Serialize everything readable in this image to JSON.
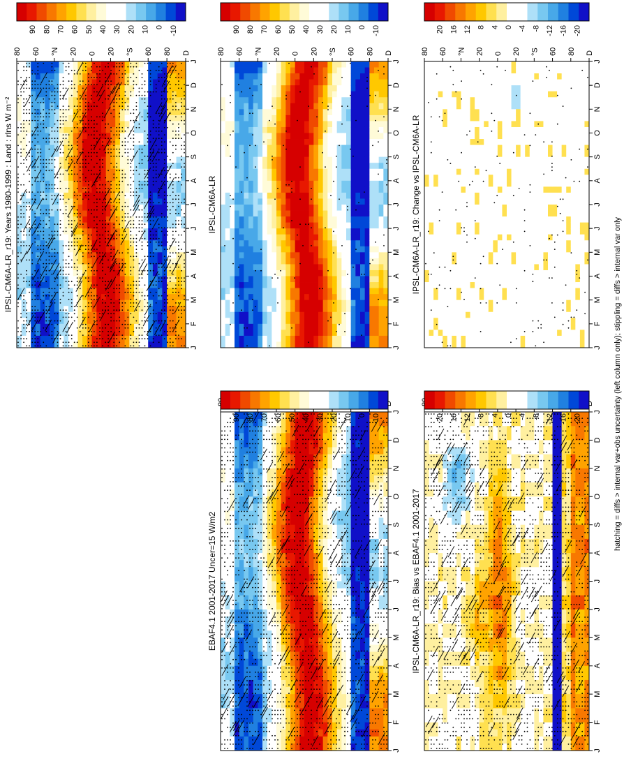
{
  "figure": {
    "caption": "hatching = diffs > internal var+obs uncertainty (left column only); stippling = diffs > internal var only"
  },
  "scales": {
    "abs": {
      "colors": [
        "#d60000",
        "#e81800",
        "#f04a00",
        "#f87800",
        "#ffa300",
        "#ffc800",
        "#ffe050",
        "#fff0a0",
        "#fffbd8",
        "#ffffff",
        "#ffffff",
        "#aee0f8",
        "#78c8f0",
        "#48a8e8",
        "#2080e0",
        "#0048d8",
        "#1010c8"
      ],
      "tick_labels": [
        "90",
        "80",
        "70",
        "60",
        "50",
        "40",
        "30",
        "20",
        "10",
        "0",
        "-10"
      ]
    },
    "diff": {
      "colors": [
        "#d60000",
        "#e81800",
        "#f04a00",
        "#f87800",
        "#ffa300",
        "#ffc800",
        "#ffe050",
        "#fff0a0",
        "#ffffff",
        "#ffffff",
        "#aee0f8",
        "#78c8f0",
        "#48a8e8",
        "#2080e0",
        "#0048d8",
        "#1010c8"
      ],
      "tick_labels": [
        "20",
        "16",
        "12",
        "8",
        "4",
        "0",
        "-4",
        "-8",
        "-12",
        "-16",
        "-20"
      ]
    }
  },
  "chart_data": [
    {
      "id": "p1",
      "type": "heatmap",
      "scale": "abs",
      "title": "IPSL-CM6A-LR_r19: Years 1980-1999 : Land : rlns W m⁻²",
      "colorbar_ticks": [
        "90",
        "80",
        "70",
        "60",
        "50",
        "40",
        "30",
        "20",
        "10",
        "0",
        "-10"
      ],
      "months": [
        "J",
        "F",
        "M",
        "A",
        "M",
        "J",
        "J",
        "A",
        "S",
        "O",
        "N",
        "D",
        "J"
      ],
      "lat_ticks": [
        "80",
        "60",
        "°N",
        "20",
        "0",
        "20",
        "°S",
        "60",
        "80",
        "D"
      ],
      "hatched": true,
      "stippled": true
    },
    {
      "id": "p2",
      "type": "heatmap",
      "scale": "abs",
      "title": "IPSL-CM6A-LR",
      "colorbar_ticks": [
        "90",
        "80",
        "70",
        "60",
        "50",
        "40",
        "30",
        "20",
        "10",
        "0",
        "-10"
      ],
      "months": [
        "J",
        "F",
        "M",
        "A",
        "M",
        "J",
        "J",
        "A",
        "S",
        "O",
        "N",
        "D",
        "J"
      ],
      "lat_ticks": [
        "80",
        "60",
        "°N",
        "20",
        "0",
        "20",
        "°S",
        "60",
        "80",
        "D"
      ],
      "hatched": false,
      "stippled": true
    },
    {
      "id": "p3",
      "type": "heatmap",
      "scale": "abs",
      "title": "EBAF4.1 2001-2017 Uncer=15 W/m2",
      "colorbar_ticks": [
        "90",
        "80",
        "70",
        "60",
        "50",
        "40",
        "30",
        "20",
        "10",
        "0",
        "-10"
      ],
      "months": [
        "J",
        "F",
        "M",
        "A",
        "M",
        "J",
        "J",
        "A",
        "S",
        "O",
        "N",
        "D",
        "J"
      ],
      "lat_ticks": [
        "80",
        "60",
        "°N",
        "20",
        "0",
        "20",
        "°S",
        "60",
        "80",
        "D"
      ],
      "hatched": true,
      "stippled": true
    },
    {
      "id": "p4",
      "type": "heatmap",
      "scale": "diff",
      "title": "IPSL-CM6A-LR_r19: Change vs IPSL-CM6A-LR",
      "colorbar_ticks": [
        "20",
        "16",
        "12",
        "8",
        "4",
        "0",
        "-4",
        "-8",
        "-12",
        "-16",
        "-20"
      ],
      "months": [
        "J",
        "F",
        "M",
        "A",
        "M",
        "J",
        "J",
        "A",
        "S",
        "O",
        "N",
        "D",
        "J"
      ],
      "lat_ticks": [
        "80",
        "60",
        "°N",
        "20",
        "0",
        "20",
        "°S",
        "60",
        "80",
        "D"
      ],
      "hatched": false,
      "stippled": true
    },
    {
      "id": "p5",
      "type": "heatmap",
      "scale": "diff",
      "title": "IPSL-CM6A-LR_r19: Bias vs EBAF4.1 2001-2017",
      "colorbar_ticks": [
        "20",
        "16",
        "12",
        "8",
        "4",
        "0",
        "-4",
        "-8",
        "-12",
        "-16",
        "-20"
      ],
      "months": [
        "J",
        "F",
        "M",
        "A",
        "M",
        "J",
        "J",
        "A",
        "S",
        "O",
        "N",
        "D",
        "J"
      ],
      "lat_ticks": [
        "80",
        "60",
        "°N",
        "20",
        "0",
        "20",
        "°S",
        "60",
        "80",
        "D"
      ],
      "hatched": true,
      "stippled": true
    }
  ]
}
